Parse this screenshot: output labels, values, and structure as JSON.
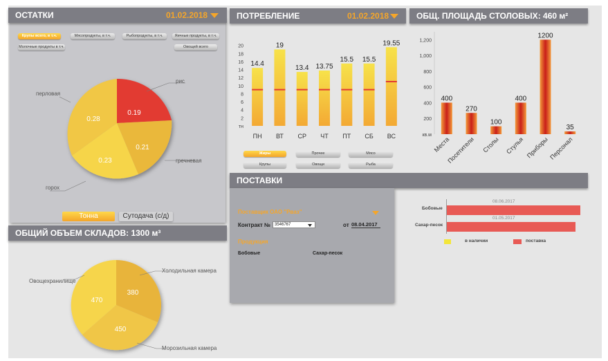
{
  "remains": {
    "title": "ОСТАТКИ",
    "date": "01.02.2018",
    "filters": [
      "Крупы всего, в т.ч.",
      "Мясопродукты, в т.ч.",
      "Рыбопродукты, в т.ч.",
      "Яичные продукты, в т.ч.",
      "Молочные продукты в т.ч.",
      "Овощей всего"
    ],
    "slices": [
      {
        "label": "рис",
        "value": "0.19",
        "color": "#e23a33"
      },
      {
        "label": "гречневая",
        "value": "0.21",
        "color": "#eab83a"
      },
      {
        "label": "горох",
        "value": "0.23",
        "color": "#f6d54a"
      },
      {
        "label": "перловая",
        "value": "0.28",
        "color": "#f1c744"
      }
    ],
    "btn_tonna": "Тонна",
    "btn_sutodacha": "Сутодача (с/д)"
  },
  "consumption": {
    "title": "ПОТРЕБЛЕНИЕ",
    "date": "01.02.2018",
    "unit": "тн",
    "filters": [
      "Жиры",
      "Прочее",
      "Мясо",
      "Крупы",
      "Овощи",
      "Рыба"
    ]
  },
  "dining": {
    "title": "ОБЩ. ПЛОЩАДЬ СТОЛОВЫХ: 460 м²",
    "unit": "кв.м"
  },
  "storage": {
    "title": "ОБЩИЙ ОБЪЕМ СКЛАДОВ: 1300 м³",
    "slices": [
      {
        "label": "Холодильная камера",
        "value": "380",
        "color": "#e8b43a"
      },
      {
        "label": "Морозильная камера",
        "value": "450",
        "color": "#f0c646"
      },
      {
        "label": "Овощехранилище",
        "value": "470",
        "color": "#f6d54c"
      }
    ]
  },
  "deliveries": {
    "title": "ПОСТАВКИ",
    "supplier": "Поставщик ОАО \"Рваз\"",
    "contract_label": "Контракт №",
    "contract_value": "3546767",
    "from_label": "от",
    "from_date": "08.04.2017",
    "products_label": "Продукция",
    "products": [
      "Бобовые",
      "Сахар-песок"
    ],
    "bars": [
      {
        "name": "Бобовые",
        "date": "08.06.2017"
      },
      {
        "name": "Сахар-песок",
        "date": "01.05.2017"
      }
    ],
    "legend_available": "в наличии",
    "legend_delivery": "поставка",
    "color_available": "#f3e63a",
    "color_delivery": "#e85a55"
  },
  "chart_data": [
    {
      "type": "bar",
      "categories": [
        "ПН",
        "ВТ",
        "СР",
        "ЧТ",
        "ПТ",
        "СБ",
        "ВС"
      ],
      "values": [
        14.4,
        19,
        13.4,
        13.75,
        15.5,
        15.5,
        19.55
      ],
      "value_labels": [
        "14.4",
        "19",
        "13.4",
        "13.75",
        "15.5",
        "15.5",
        "19.55"
      ],
      "reference_values": [
        9,
        9,
        9,
        9,
        9,
        9,
        11
      ],
      "yticks": [
        "20",
        "18",
        "16",
        "14",
        "12",
        "10",
        "8",
        "6",
        "4",
        "2"
      ],
      "ylabel": "тн",
      "ylim": [
        0,
        22
      ]
    },
    {
      "type": "bar",
      "categories": [
        "Места",
        "Посетители",
        "Столы",
        "Стулья",
        "Приборы",
        "Персонал"
      ],
      "values": [
        400,
        270,
        100,
        400,
        1200,
        35
      ],
      "yticks": [
        "1,200",
        "1,000",
        "800",
        "600",
        "400",
        "200"
      ],
      "ylabel": "кв.м",
      "ylim": [
        0,
        1300
      ]
    }
  ]
}
